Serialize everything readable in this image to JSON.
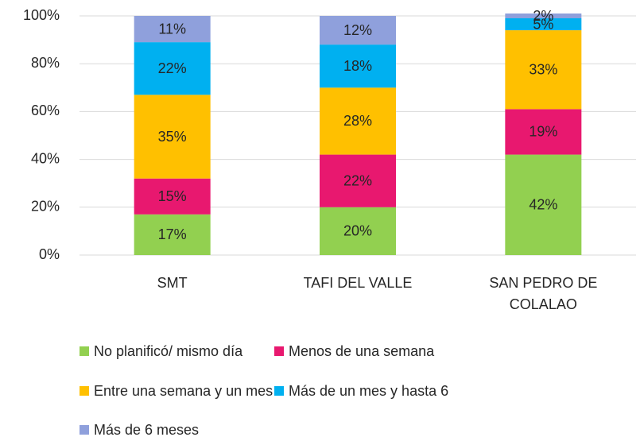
{
  "chart_data": {
    "type": "stacked_bar",
    "categories": [
      "SMT",
      "TAFI DEL VALLE",
      "SAN PEDRO DE COLALAO"
    ],
    "series": [
      {
        "name": "No planificó/ mismo día",
        "color": "#92d050",
        "values": [
          17,
          20,
          42
        ],
        "value_labels": [
          "17%",
          "20%",
          "42%"
        ]
      },
      {
        "name": "Menos de una semana",
        "color": "#e8186f",
        "values": [
          15,
          22,
          19
        ],
        "value_labels": [
          "15%",
          "22%",
          "19%"
        ]
      },
      {
        "name": "Entre una semana y un mes",
        "color": "#ffc000",
        "values": [
          35,
          28,
          33
        ],
        "value_labels": [
          "35%",
          "28%",
          "33%"
        ]
      },
      {
        "name": "Más de un mes y hasta 6",
        "color": "#00b0f0",
        "values": [
          22,
          18,
          5
        ],
        "value_labels": [
          "22%",
          "18%",
          "5%"
        ]
      },
      {
        "name": "Más de 6 meses",
        "color": "#8fa0dc",
        "values": [
          11,
          12,
          2
        ],
        "value_labels": [
          "11%",
          "12%",
          "2%"
        ]
      }
    ],
    "ylim": [
      0,
      100
    ],
    "yticks": [
      {
        "value": 0,
        "label": "0%"
      },
      {
        "value": 20,
        "label": "20%"
      },
      {
        "value": 40,
        "label": "40%"
      },
      {
        "value": 60,
        "label": "60%"
      },
      {
        "value": 80,
        "label": "80%"
      },
      {
        "value": 100,
        "label": "100%"
      }
    ],
    "grid": true,
    "legend": "bottom"
  }
}
